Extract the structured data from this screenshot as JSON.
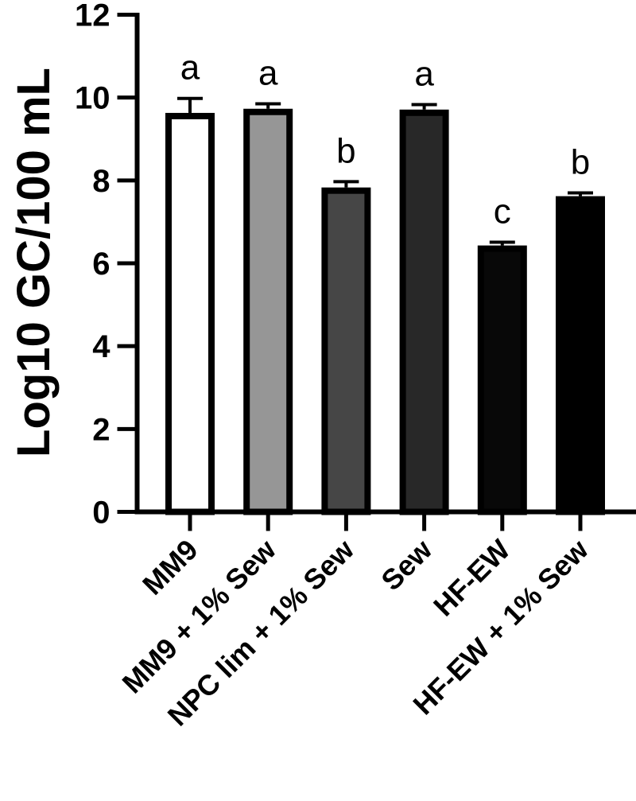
{
  "chart_data": {
    "type": "bar",
    "title": "",
    "xlabel": "",
    "ylabel": "Log10 GC/100 mL",
    "ylim": [
      0,
      12
    ],
    "yticks": [
      0,
      2,
      4,
      6,
      8,
      10,
      12
    ],
    "grid": false,
    "legend": null,
    "categories": [
      "MM9",
      "MM9 + 1% Sew",
      "NPC lim + 1% Sew",
      "Sew",
      "HF-EW",
      "HF-EW + 1% Sew"
    ],
    "values": [
      9.63,
      9.73,
      7.83,
      9.71,
      6.43,
      7.62
    ],
    "error_upper": [
      0.35,
      0.12,
      0.14,
      0.12,
      0.08,
      0.08
    ],
    "significance_letters": [
      "a",
      "a",
      "b",
      "a",
      "c",
      "b"
    ],
    "bar_fill_colors": [
      "#ffffff",
      "#969696",
      "#464646",
      "#282828",
      "#080808",
      "#000000"
    ],
    "bar_edge_color": "#000000"
  },
  "axis": {
    "y_title": "Log10 GC/100 mL"
  }
}
